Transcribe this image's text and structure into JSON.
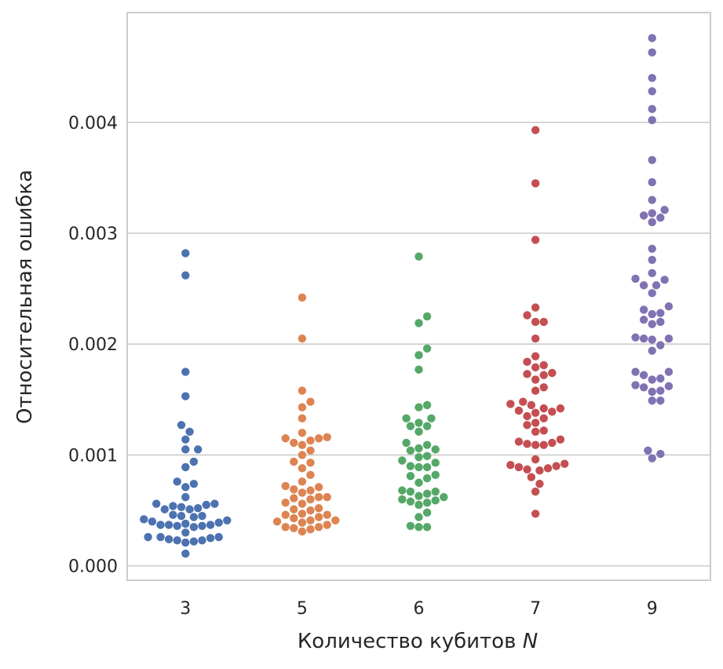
{
  "chart_data": {
    "type": "scatter",
    "style": "swarm",
    "xlabel": "Количество кубитов",
    "xlabel_symbol": "N",
    "ylabel": "Относительная ошибка",
    "categories": [
      "3",
      "5",
      "6",
      "7",
      "9"
    ],
    "ylim": [
      -0.00013,
      0.00499
    ],
    "yticks": [
      0.0,
      0.001,
      0.002,
      0.003,
      0.004
    ],
    "ytick_labels": [
      "0.000",
      "0.001",
      "0.002",
      "0.003",
      "0.004"
    ],
    "grid": "horizontal",
    "colors": [
      "#4c72b0",
      "#dd8452",
      "#55a868",
      "#c44e52",
      "#8172b3"
    ],
    "series": [
      {
        "category": "3",
        "values": [
          0.00282,
          0.00262,
          0.00175,
          0.00153,
          0.00127,
          0.00121,
          0.00114,
          0.00105,
          0.00105,
          0.00094,
          0.00089,
          0.00076,
          0.00074,
          0.00071,
          0.00062,
          0.00056,
          0.00056,
          0.00055,
          0.00054,
          0.00053,
          0.00052,
          0.00051,
          0.00051,
          0.00046,
          0.00045,
          0.00045,
          0.00044,
          0.00042,
          0.00041,
          0.0004,
          0.00039,
          0.00038,
          0.00037,
          0.00037,
          0.00037,
          0.00036,
          0.00036,
          0.00035,
          0.0003,
          0.00026,
          0.00026,
          0.00026,
          0.00025,
          0.00024,
          0.00023,
          0.00023,
          0.00022,
          0.00021,
          0.00011
        ]
      },
      {
        "category": "5",
        "values": [
          0.00242,
          0.00205,
          0.00158,
          0.00148,
          0.00143,
          0.00133,
          0.0012,
          0.00116,
          0.00115,
          0.00115,
          0.00113,
          0.00111,
          0.00109,
          0.00104,
          0.001,
          0.00094,
          0.00093,
          0.00088,
          0.00082,
          0.00076,
          0.00072,
          0.00071,
          0.00069,
          0.00068,
          0.00066,
          0.00062,
          0.00062,
          0.00061,
          0.0006,
          0.00057,
          0.00056,
          0.00052,
          0.00051,
          0.0005,
          0.00047,
          0.00046,
          0.00046,
          0.00044,
          0.00043,
          0.00041,
          0.00041,
          0.0004,
          0.00039,
          0.00037,
          0.00035,
          0.00035,
          0.00034,
          0.00033,
          0.00031
        ]
      },
      {
        "category": "6",
        "values": [
          0.00279,
          0.00225,
          0.00219,
          0.00196,
          0.0019,
          0.00177,
          0.00145,
          0.00143,
          0.00133,
          0.00133,
          0.00129,
          0.00126,
          0.00126,
          0.00121,
          0.00111,
          0.00109,
          0.00106,
          0.00105,
          0.00104,
          0.00099,
          0.00098,
          0.00095,
          0.00093,
          0.0009,
          0.00089,
          0.00089,
          0.00082,
          0.00081,
          0.00079,
          0.00075,
          0.00068,
          0.00067,
          0.00067,
          0.00065,
          0.00063,
          0.00062,
          0.0006,
          0.00059,
          0.00058,
          0.00057,
          0.00055,
          0.00048,
          0.00044,
          0.00036,
          0.00035,
          0.00035
        ]
      },
      {
        "category": "7",
        "values": [
          0.00393,
          0.00345,
          0.00294,
          0.00233,
          0.00226,
          0.0022,
          0.0022,
          0.00205,
          0.00189,
          0.00184,
          0.00181,
          0.00179,
          0.00174,
          0.00173,
          0.00172,
          0.00168,
          0.00161,
          0.00158,
          0.00148,
          0.00146,
          0.00145,
          0.00142,
          0.00142,
          0.0014,
          0.00139,
          0.00138,
          0.00135,
          0.00133,
          0.00129,
          0.00127,
          0.00122,
          0.00121,
          0.00114,
          0.00112,
          0.00111,
          0.0011,
          0.00109,
          0.00109,
          0.00096,
          0.00092,
          0.00091,
          0.0009,
          0.00089,
          0.00088,
          0.00087,
          0.00086,
          0.0008,
          0.00074,
          0.00067,
          0.00047
        ]
      },
      {
        "category": "9",
        "values": [
          0.00476,
          0.00463,
          0.0044,
          0.00428,
          0.00412,
          0.00402,
          0.00366,
          0.00346,
          0.0033,
          0.00321,
          0.00318,
          0.00316,
          0.00314,
          0.0031,
          0.00286,
          0.00276,
          0.00264,
          0.00259,
          0.00258,
          0.00253,
          0.00253,
          0.00246,
          0.00234,
          0.00231,
          0.00228,
          0.00227,
          0.00222,
          0.0022,
          0.00218,
          0.00206,
          0.00205,
          0.00205,
          0.00204,
          0.00199,
          0.00194,
          0.00175,
          0.00175,
          0.00172,
          0.00169,
          0.00168,
          0.00163,
          0.00162,
          0.00161,
          0.00158,
          0.00157,
          0.00149,
          0.00149,
          0.00104,
          0.00101,
          0.00097
        ]
      }
    ]
  }
}
